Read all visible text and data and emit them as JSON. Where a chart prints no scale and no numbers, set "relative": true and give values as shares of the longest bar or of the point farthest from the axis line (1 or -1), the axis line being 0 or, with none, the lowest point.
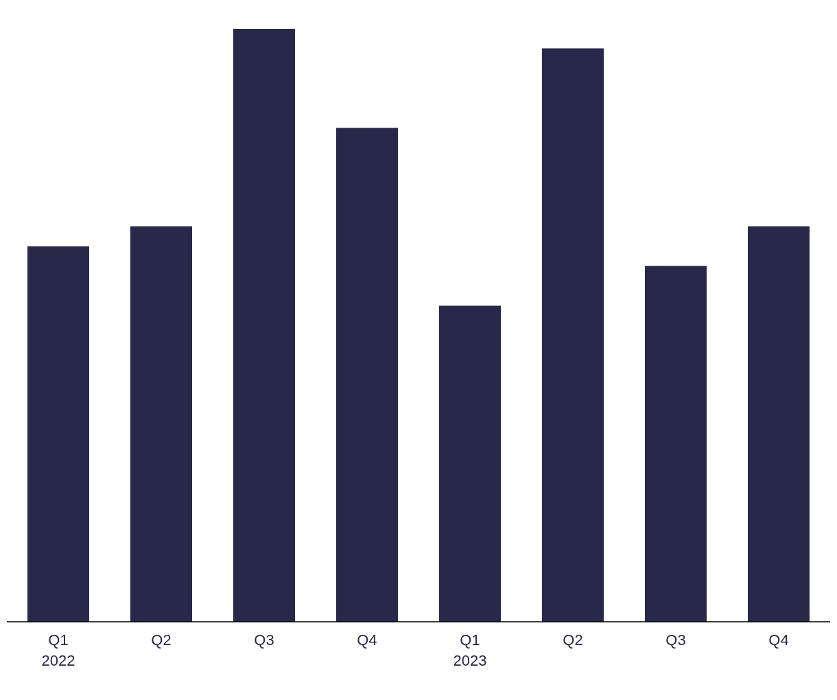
{
  "chart_data": {
    "type": "bar",
    "relative": true,
    "categories": [
      "Q1 2022",
      "Q2",
      "Q3",
      "Q4",
      "Q1 2023",
      "Q2",
      "Q3",
      "Q4"
    ],
    "values": [
      0.633,
      0.667,
      1,
      0.833,
      0.533,
      0.967,
      0.6,
      0.667
    ],
    "color": "#28284a",
    "grid": false,
    "legend": false
  }
}
